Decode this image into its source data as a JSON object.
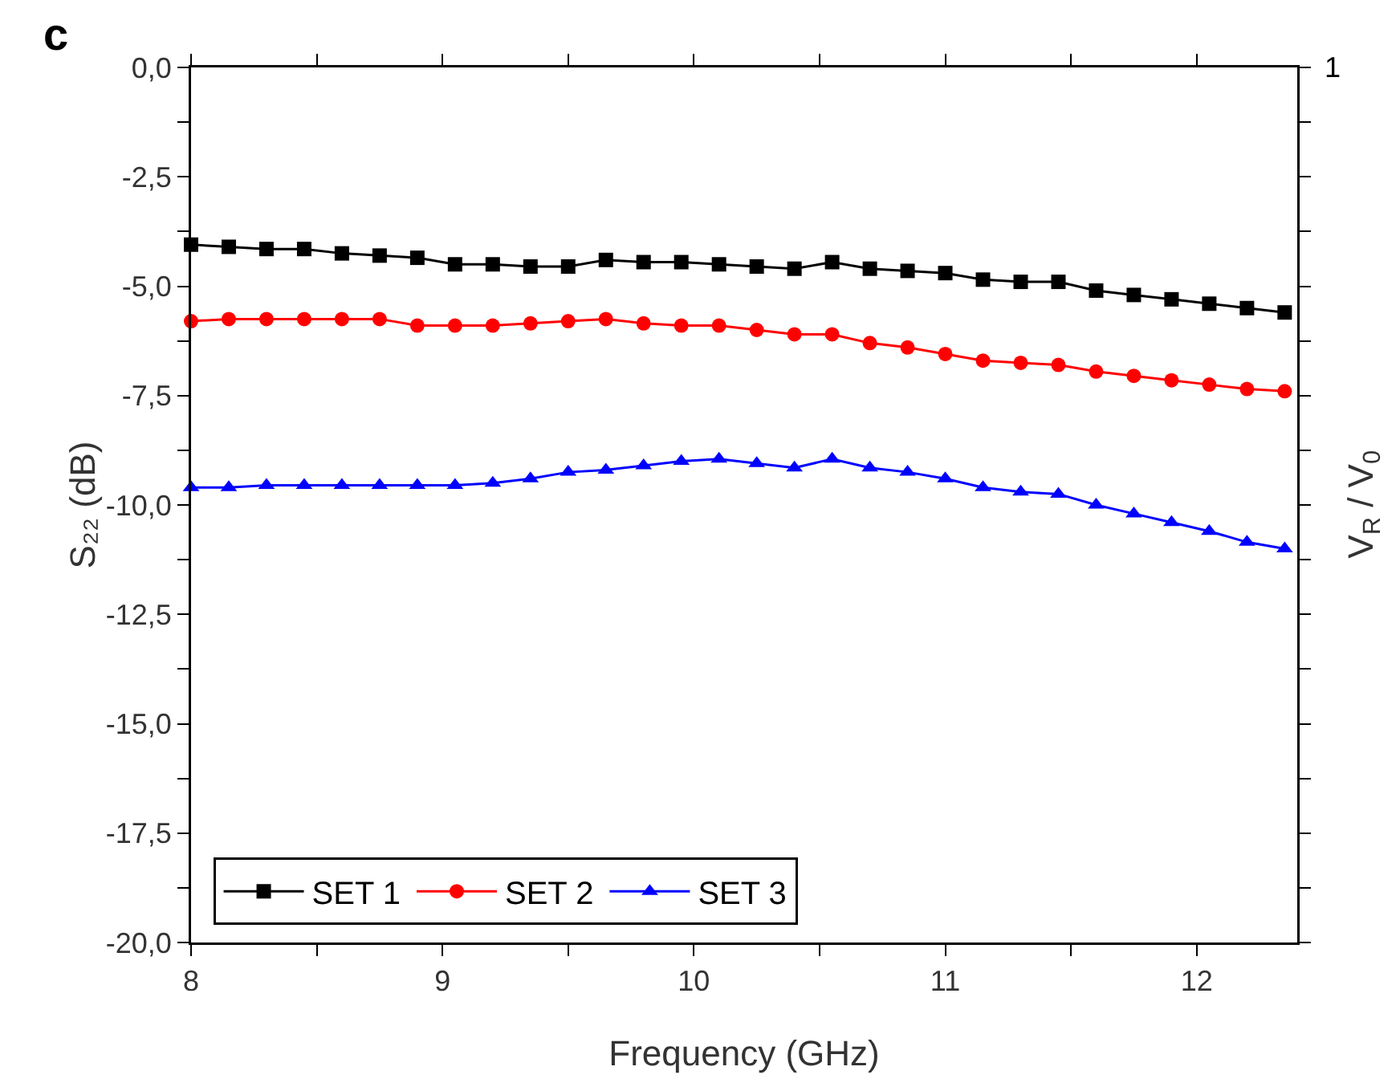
{
  "chart_data": {
    "type": "line",
    "xlabel": "Frequency (GHz)",
    "ylabel": "S₂₂ (dB)",
    "y2label": "V$_{R}$ / V$_{0}$",
    "annotations": [
      "c",
      "1"
    ],
    "x": [
      8,
      8.15,
      8.3,
      8.45,
      8.6,
      8.75,
      8.9,
      9.05,
      9.2,
      9.35,
      9.5,
      9.65,
      9.8,
      9.95,
      10.1,
      10.25,
      10.4,
      10.55,
      10.7,
      10.85,
      11,
      11.15,
      11.3,
      11.45,
      11.6,
      11.75,
      11.9,
      12.05,
      12.2,
      12.35
    ],
    "series": [
      {
        "name": "SET 1",
        "color": "#000000",
        "marker": "square",
        "values": [
          -4.05,
          -4.1,
          -4.15,
          -4.15,
          -4.25,
          -4.3,
          -4.35,
          -4.5,
          -4.5,
          -4.55,
          -4.55,
          -4.4,
          -4.45,
          -4.45,
          -4.5,
          -4.55,
          -4.6,
          -4.45,
          -4.6,
          -4.65,
          -4.7,
          -4.85,
          -4.9,
          -4.9,
          -5.1,
          -5.2,
          -5.3,
          -5.4,
          -5.5,
          -5.6
        ]
      },
      {
        "name": "SET 2",
        "color": "#ff0000",
        "marker": "circle",
        "values": [
          -5.8,
          -5.75,
          -5.75,
          -5.75,
          -5.75,
          -5.75,
          -5.9,
          -5.9,
          -5.9,
          -5.85,
          -5.8,
          -5.75,
          -5.85,
          -5.9,
          -5.9,
          -6.0,
          -6.1,
          -6.1,
          -6.3,
          -6.4,
          -6.55,
          -6.7,
          -6.75,
          -6.8,
          -6.95,
          -7.05,
          -7.15,
          -7.25,
          -7.35,
          -7.4
        ]
      },
      {
        "name": "SET 3",
        "color": "#0000ff",
        "marker": "triangle",
        "values": [
          -9.6,
          -9.6,
          -9.55,
          -9.55,
          -9.55,
          -9.55,
          -9.55,
          -9.55,
          -9.5,
          -9.4,
          -9.25,
          -9.2,
          -9.1,
          -9.0,
          -8.95,
          -9.05,
          -9.15,
          -8.95,
          -9.15,
          -9.25,
          -9.4,
          -9.6,
          -9.7,
          -9.75,
          -10.0,
          -10.2,
          -10.4,
          -10.6,
          -10.85,
          -11.0
        ]
      }
    ],
    "xlim": [
      8,
      12.4
    ],
    "xticks": [
      8,
      {
        "value": 8.5,
        "label": null
      },
      9,
      {
        "value": 9.5,
        "label": null
      },
      10,
      {
        "value": 10.5,
        "label": null
      },
      11,
      {
        "value": 11.5,
        "label": null
      },
      12
    ],
    "ylim": [
      -20,
      0
    ],
    "yticks": [
      {
        "value": -20,
        "label": "-20,0"
      },
      {
        "value": -18.75,
        "label": null
      },
      {
        "value": -17.5,
        "label": "-17,5"
      },
      {
        "value": -16.25,
        "label": null
      },
      {
        "value": -15,
        "label": "-15,0"
      },
      {
        "value": -13.75,
        "label": null
      },
      {
        "value": -12.5,
        "label": "-12,5"
      },
      {
        "value": -11.25,
        "label": null
      },
      {
        "value": -10,
        "label": "-10,0"
      },
      {
        "value": -8.75,
        "label": null
      },
      {
        "value": -7.5,
        "label": "-7,5"
      },
      {
        "value": -6.25,
        "label": null
      },
      {
        "value": -5,
        "label": "-5,0"
      },
      {
        "value": -3.75,
        "label": null
      },
      {
        "value": -2.5,
        "label": "-2,5"
      },
      {
        "value": -1.25,
        "label": null
      },
      {
        "value": 0,
        "label": "0,0"
      }
    ],
    "grid": false,
    "legend": "bottom left",
    "line_style": "solid"
  }
}
